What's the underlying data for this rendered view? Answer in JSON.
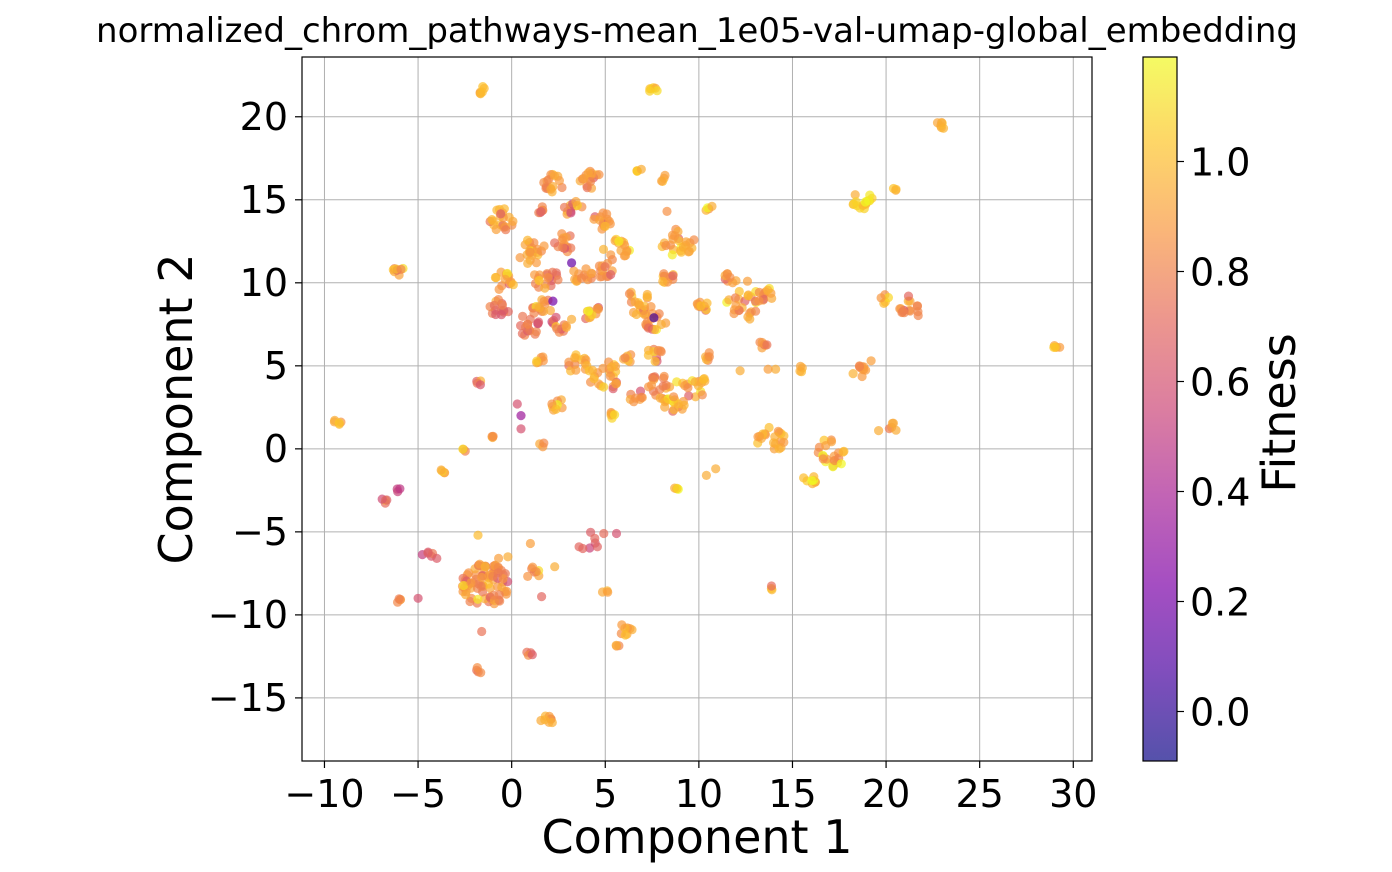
{
  "chart_data": {
    "type": "scatter",
    "title": "normalized_chrom_pathways-mean_1e05-val-umap-global_embedding",
    "xlabel": "Component 1",
    "ylabel": "Component 2",
    "xlim": [
      -11.2,
      31.0
    ],
    "ylim": [
      -18.8,
      23.6
    ],
    "xticks": [
      -10,
      -5,
      0,
      5,
      10,
      15,
      20,
      25,
      30
    ],
    "yticks": [
      -15,
      -10,
      -5,
      0,
      5,
      10,
      15,
      20
    ],
    "xtick_labels": [
      "−10",
      "−5",
      "0",
      "5",
      "10",
      "15",
      "20",
      "25",
      "30"
    ],
    "ytick_labels": [
      "−15",
      "−10",
      "−5",
      "0",
      "5",
      "10",
      "15",
      "20"
    ],
    "grid": true,
    "colorbar": {
      "label": "Fitness",
      "colormap": "plasma",
      "alpha": 0.7,
      "range": [
        -0.09,
        1.19
      ],
      "ticks": [
        0.0,
        0.2,
        0.4,
        0.6,
        0.8,
        1.0
      ],
      "tick_labels": [
        "0.0",
        "0.2",
        "0.4",
        "0.6",
        "0.8",
        "1.0"
      ]
    },
    "clusters": [
      {
        "x": -1.6,
        "y": 21.6,
        "r": 0.25,
        "n": 6,
        "fitness": 0.95
      },
      {
        "x": 7.6,
        "y": 21.6,
        "r": 0.25,
        "n": 6,
        "fitness": 0.95
      },
      {
        "x": 23.0,
        "y": 19.5,
        "r": 0.3,
        "n": 6,
        "fitness": 0.97
      },
      {
        "x": 2.3,
        "y": 16.0,
        "r": 0.6,
        "n": 16,
        "fitness": 0.9
      },
      {
        "x": 4.2,
        "y": 16.2,
        "r": 0.6,
        "n": 16,
        "fitness": 0.88
      },
      {
        "x": 6.8,
        "y": 16.8,
        "r": 0.2,
        "n": 4,
        "fitness": 0.97
      },
      {
        "x": 8.1,
        "y": 16.3,
        "r": 0.2,
        "n": 4,
        "fitness": 0.95
      },
      {
        "x": -0.5,
        "y": 13.8,
        "r": 0.7,
        "n": 20,
        "fitness": 0.93
      },
      {
        "x": 1.4,
        "y": 14.4,
        "r": 0.3,
        "n": 6,
        "fitness": 0.75
      },
      {
        "x": 3.3,
        "y": 14.5,
        "r": 0.5,
        "n": 12,
        "fitness": 0.85
      },
      {
        "x": 4.8,
        "y": 13.8,
        "r": 0.6,
        "n": 14,
        "fitness": 0.9
      },
      {
        "x": 1.1,
        "y": 11.9,
        "r": 0.8,
        "n": 22,
        "fitness": 0.9
      },
      {
        "x": 2.8,
        "y": 12.4,
        "r": 0.6,
        "n": 14,
        "fitness": 0.82
      },
      {
        "x": 5.6,
        "y": 12.0,
        "r": 0.7,
        "n": 16,
        "fitness": 0.9
      },
      {
        "x": 8.9,
        "y": 12.4,
        "r": 0.9,
        "n": 24,
        "fitness": 0.92
      },
      {
        "x": 10.4,
        "y": 14.4,
        "r": 0.15,
        "n": 3,
        "fitness": 0.95
      },
      {
        "x": -6.0,
        "y": 10.8,
        "r": 0.35,
        "n": 8,
        "fitness": 0.9
      },
      {
        "x": -0.4,
        "y": 10.1,
        "r": 0.6,
        "n": 14,
        "fitness": 0.92
      },
      {
        "x": 1.8,
        "y": 10.3,
        "r": 0.7,
        "n": 18,
        "fitness": 0.78
      },
      {
        "x": 3.8,
        "y": 10.4,
        "r": 0.6,
        "n": 14,
        "fitness": 0.88
      },
      {
        "x": 5.0,
        "y": 10.7,
        "r": 0.5,
        "n": 12,
        "fitness": 0.82
      },
      {
        "x": 8.4,
        "y": 10.3,
        "r": 0.4,
        "n": 10,
        "fitness": 0.92
      },
      {
        "x": 11.6,
        "y": 10.2,
        "r": 0.4,
        "n": 8,
        "fitness": 0.85
      },
      {
        "x": -0.7,
        "y": 8.4,
        "r": 0.6,
        "n": 14,
        "fitness": 0.72
      },
      {
        "x": 1.6,
        "y": 8.6,
        "r": 0.6,
        "n": 14,
        "fitness": 0.86
      },
      {
        "x": 0.8,
        "y": 7.4,
        "r": 0.7,
        "n": 16,
        "fitness": 0.74
      },
      {
        "x": 2.5,
        "y": 7.5,
        "r": 0.5,
        "n": 12,
        "fitness": 0.82
      },
      {
        "x": 4.3,
        "y": 8.2,
        "r": 0.5,
        "n": 12,
        "fitness": 0.88
      },
      {
        "x": 6.8,
        "y": 8.8,
        "r": 0.8,
        "n": 20,
        "fitness": 0.9
      },
      {
        "x": 7.6,
        "y": 7.6,
        "r": 0.7,
        "n": 16,
        "fitness": 0.86
      },
      {
        "x": 10.2,
        "y": 8.5,
        "r": 0.4,
        "n": 10,
        "fitness": 0.94
      },
      {
        "x": 12.3,
        "y": 8.6,
        "r": 0.9,
        "n": 22,
        "fitness": 0.9
      },
      {
        "x": 13.5,
        "y": 9.3,
        "r": 0.5,
        "n": 12,
        "fitness": 0.92
      },
      {
        "x": 13.4,
        "y": 6.3,
        "r": 0.3,
        "n": 6,
        "fitness": 0.82
      },
      {
        "x": 20.0,
        "y": 9.0,
        "r": 0.3,
        "n": 5,
        "fitness": 0.95
      },
      {
        "x": 21.3,
        "y": 8.4,
        "r": 0.6,
        "n": 14,
        "fitness": 0.9
      },
      {
        "x": 29.1,
        "y": 6.2,
        "r": 0.2,
        "n": 5,
        "fitness": 0.95
      },
      {
        "x": 1.6,
        "y": 5.3,
        "r": 0.3,
        "n": 6,
        "fitness": 0.86
      },
      {
        "x": 3.5,
        "y": 5.1,
        "r": 0.6,
        "n": 14,
        "fitness": 0.92
      },
      {
        "x": 5.0,
        "y": 4.4,
        "r": 0.9,
        "n": 24,
        "fitness": 0.94
      },
      {
        "x": 6.2,
        "y": 5.5,
        "r": 0.3,
        "n": 6,
        "fitness": 0.95
      },
      {
        "x": 7.6,
        "y": 5.6,
        "r": 0.5,
        "n": 10,
        "fitness": 0.86
      },
      {
        "x": 8.2,
        "y": 3.8,
        "r": 0.9,
        "n": 22,
        "fitness": 0.85
      },
      {
        "x": 9.8,
        "y": 3.8,
        "r": 0.7,
        "n": 16,
        "fitness": 0.92
      },
      {
        "x": 10.4,
        "y": 5.6,
        "r": 0.3,
        "n": 6,
        "fitness": 0.9
      },
      {
        "x": 2.5,
        "y": 2.6,
        "r": 0.4,
        "n": 8,
        "fitness": 0.94
      },
      {
        "x": 5.3,
        "y": 2.1,
        "r": 0.3,
        "n": 6,
        "fitness": 0.9
      },
      {
        "x": 6.6,
        "y": 3.2,
        "r": 0.4,
        "n": 8,
        "fitness": 0.86
      },
      {
        "x": 8.7,
        "y": 2.6,
        "r": 0.6,
        "n": 14,
        "fitness": 0.9
      },
      {
        "x": 15.4,
        "y": 4.8,
        "r": 0.2,
        "n": 4,
        "fitness": 0.95
      },
      {
        "x": 18.6,
        "y": 4.6,
        "r": 0.4,
        "n": 10,
        "fitness": 0.88
      },
      {
        "x": 18.7,
        "y": 15.0,
        "r": 0.6,
        "n": 16,
        "fitness": 0.98
      },
      {
        "x": 20.5,
        "y": 15.6,
        "r": 0.15,
        "n": 3,
        "fitness": 0.97
      },
      {
        "x": -1.8,
        "y": 4.0,
        "r": 0.2,
        "n": 4,
        "fitness": 0.7
      },
      {
        "x": -9.3,
        "y": 1.7,
        "r": 0.25,
        "n": 5,
        "fitness": 0.95
      },
      {
        "x": 1.6,
        "y": 0.3,
        "r": 0.2,
        "n": 3,
        "fitness": 0.85
      },
      {
        "x": 13.8,
        "y": 0.6,
        "r": 0.8,
        "n": 20,
        "fitness": 0.92
      },
      {
        "x": 17.0,
        "y": -0.3,
        "r": 0.9,
        "n": 22,
        "fitness": 0.9
      },
      {
        "x": 15.9,
        "y": -1.9,
        "r": 0.35,
        "n": 8,
        "fitness": 0.95
      },
      {
        "x": 20.4,
        "y": 1.3,
        "r": 0.25,
        "n": 5,
        "fitness": 0.92
      },
      {
        "x": -2.6,
        "y": -0.2,
        "r": 0.2,
        "n": 3,
        "fitness": 0.8
      },
      {
        "x": -3.7,
        "y": -1.3,
        "r": 0.2,
        "n": 4,
        "fitness": 0.9
      },
      {
        "x": -0.9,
        "y": 0.8,
        "r": 0.2,
        "n": 4,
        "fitness": 0.9
      },
      {
        "x": -6.0,
        "y": -2.5,
        "r": 0.15,
        "n": 3,
        "fitness": 0.55
      },
      {
        "x": -6.8,
        "y": -3.1,
        "r": 0.2,
        "n": 4,
        "fitness": 0.7
      },
      {
        "x": 8.8,
        "y": -2.4,
        "r": 0.2,
        "n": 4,
        "fitness": 0.95
      },
      {
        "x": -1.4,
        "y": -8.2,
        "r": 1.3,
        "n": 80,
        "fitness": 0.85
      },
      {
        "x": -4.5,
        "y": -6.4,
        "r": 0.3,
        "n": 5,
        "fitness": 0.7
      },
      {
        "x": -5.9,
        "y": -9.1,
        "r": 0.25,
        "n": 4,
        "fitness": 0.85
      },
      {
        "x": -1.7,
        "y": -13.3,
        "r": 0.2,
        "n": 4,
        "fitness": 0.8
      },
      {
        "x": 0.9,
        "y": -12.3,
        "r": 0.15,
        "n": 3,
        "fitness": 0.75
      },
      {
        "x": 1.1,
        "y": -7.5,
        "r": 0.4,
        "n": 7,
        "fitness": 0.8
      },
      {
        "x": 4.5,
        "y": -5.5,
        "r": 0.6,
        "n": 6,
        "fitness": 0.72
      },
      {
        "x": 5.0,
        "y": -8.6,
        "r": 0.15,
        "n": 3,
        "fitness": 0.9
      },
      {
        "x": 6.1,
        "y": -10.9,
        "r": 0.4,
        "n": 8,
        "fitness": 0.92
      },
      {
        "x": 5.6,
        "y": -11.8,
        "r": 0.15,
        "n": 3,
        "fitness": 0.95
      },
      {
        "x": 13.9,
        "y": -8.4,
        "r": 0.15,
        "n": 3,
        "fitness": 0.95
      },
      {
        "x": 1.9,
        "y": -16.4,
        "r": 0.35,
        "n": 8,
        "fitness": 0.95
      }
    ],
    "points": [
      {
        "x": 0.3,
        "y": 2.7,
        "fitness": 0.6
      },
      {
        "x": 0.5,
        "y": 2.0,
        "fitness": 0.35
      },
      {
        "x": 0.5,
        "y": 1.2,
        "fitness": 0.6
      },
      {
        "x": 2.2,
        "y": 8.9,
        "fitness": 0.2
      },
      {
        "x": 3.2,
        "y": 7.8,
        "fitness": 0.95
      },
      {
        "x": 7.6,
        "y": 7.9,
        "fitness": 0.05
      },
      {
        "x": 3.2,
        "y": 11.2,
        "fitness": 0.15
      },
      {
        "x": 10.4,
        "y": -1.6,
        "fitness": 0.95
      },
      {
        "x": 10.9,
        "y": -1.2,
        "fitness": 0.95
      },
      {
        "x": 12.2,
        "y": 4.7,
        "fitness": 0.95
      },
      {
        "x": 14.1,
        "y": 4.8,
        "fitness": 0.95
      },
      {
        "x": 21.2,
        "y": 9.2,
        "fitness": 0.7
      },
      {
        "x": 3.8,
        "y": -6.0,
        "fitness": 0.7
      },
      {
        "x": 5.6,
        "y": -5.1,
        "fitness": 0.6
      },
      {
        "x": 1.6,
        "y": -8.9,
        "fitness": 0.7
      },
      {
        "x": -1.8,
        "y": -5.2,
        "fitness": 1.0
      },
      {
        "x": -0.7,
        "y": -6.6,
        "fitness": 0.9
      },
      {
        "x": -0.2,
        "y": -6.5,
        "fitness": 0.95
      },
      {
        "x": -4.0,
        "y": -6.6,
        "fitness": 0.65
      },
      {
        "x": -5.0,
        "y": -9.0,
        "fitness": 0.6
      },
      {
        "x": -1.6,
        "y": -11.0,
        "fitness": 0.75
      },
      {
        "x": 1.1,
        "y": -12.4,
        "fitness": 0.65
      },
      {
        "x": 1.0,
        "y": -5.7,
        "fitness": 0.9
      },
      {
        "x": 2.3,
        "y": -7.1,
        "fitness": 0.95
      },
      {
        "x": 3.6,
        "y": -5.9,
        "fitness": 0.7
      },
      {
        "x": 13.7,
        "y": 4.8,
        "fitness": 0.9
      },
      {
        "x": 19.2,
        "y": 5.3,
        "fitness": 0.9
      },
      {
        "x": 8.3,
        "y": 14.3,
        "fitness": 0.85
      },
      {
        "x": 10.7,
        "y": 14.6,
        "fitness": 0.95
      },
      {
        "x": 12.6,
        "y": 10.1,
        "fitness": 0.9
      },
      {
        "x": 19.6,
        "y": 1.1,
        "fitness": 0.95
      }
    ]
  }
}
